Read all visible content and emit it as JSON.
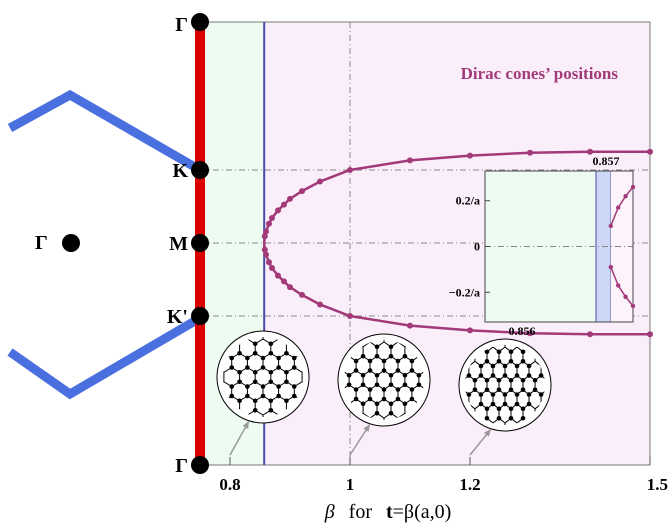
{
  "chart_data": {
    "type": "line",
    "title": "Dirac cones’ positions",
    "xlabel": {
      "beta": "β",
      "for": "for",
      "t": "t",
      "rest": "=β(a,0)"
    },
    "xlim": [
      0.75,
      1.5
    ],
    "x_ticks": [
      "0.8",
      "1",
      "1.2",
      "1.5"
    ],
    "y_points": [
      "Γ",
      "K",
      "M",
      "K'",
      "Γ"
    ],
    "left_point_label": "Γ",
    "phase_boundary": 0.857,
    "series": [
      {
        "x": [
          0.857,
          0.858,
          0.86,
          0.865,
          0.87,
          0.88,
          0.89,
          0.9,
          0.92,
          0.95,
          1.0,
          1.1,
          1.2,
          1.3,
          1.4,
          1.5
        ],
        "y": [
          0.0,
          0.035,
          0.06,
          0.1,
          0.13,
          0.17,
          0.2,
          0.23,
          0.27,
          0.32,
          0.38,
          0.43,
          0.455,
          0.47,
          0.475,
          0.475
        ]
      },
      {
        "x": [
          0.857,
          0.858,
          0.86,
          0.865,
          0.87,
          0.88,
          0.89,
          0.9,
          0.92,
          0.95,
          1.0,
          1.1,
          1.2,
          1.3,
          1.4,
          1.5
        ],
        "y": [
          0.0,
          -0.035,
          -0.06,
          -0.1,
          -0.13,
          -0.17,
          -0.2,
          -0.23,
          -0.27,
          -0.32,
          -0.38,
          -0.43,
          -0.455,
          -0.47,
          -0.475,
          -0.475
        ]
      }
    ],
    "inset": {
      "x_ticks": [
        "0.856",
        "0.857"
      ],
      "y_ticks": [
        "0.2/a",
        "0",
        "−0.2/a"
      ],
      "xlim": [
        0.8555,
        0.8575
      ],
      "ylim": [
        -0.33,
        0.33
      ],
      "band": [
        0.857,
        0.8572
      ],
      "series": [
        {
          "x": [
            0.8572,
            0.8573,
            0.8574,
            0.8575
          ],
          "y": [
            0.09,
            0.17,
            0.22,
            0.26
          ]
        },
        {
          "x": [
            0.8572,
            0.8573,
            0.8574,
            0.8575
          ],
          "y": [
            -0.09,
            -0.17,
            -0.22,
            -0.26
          ]
        }
      ]
    },
    "colors": {
      "curve": "#a23a7a",
      "region_left": "#eefbf0",
      "region_right": "#fbeefb",
      "inset_band": "#ccd8f6",
      "boundary": "#4a4aa8",
      "hexagon": "#4a6fdf",
      "axis": "#dd0000"
    }
  }
}
